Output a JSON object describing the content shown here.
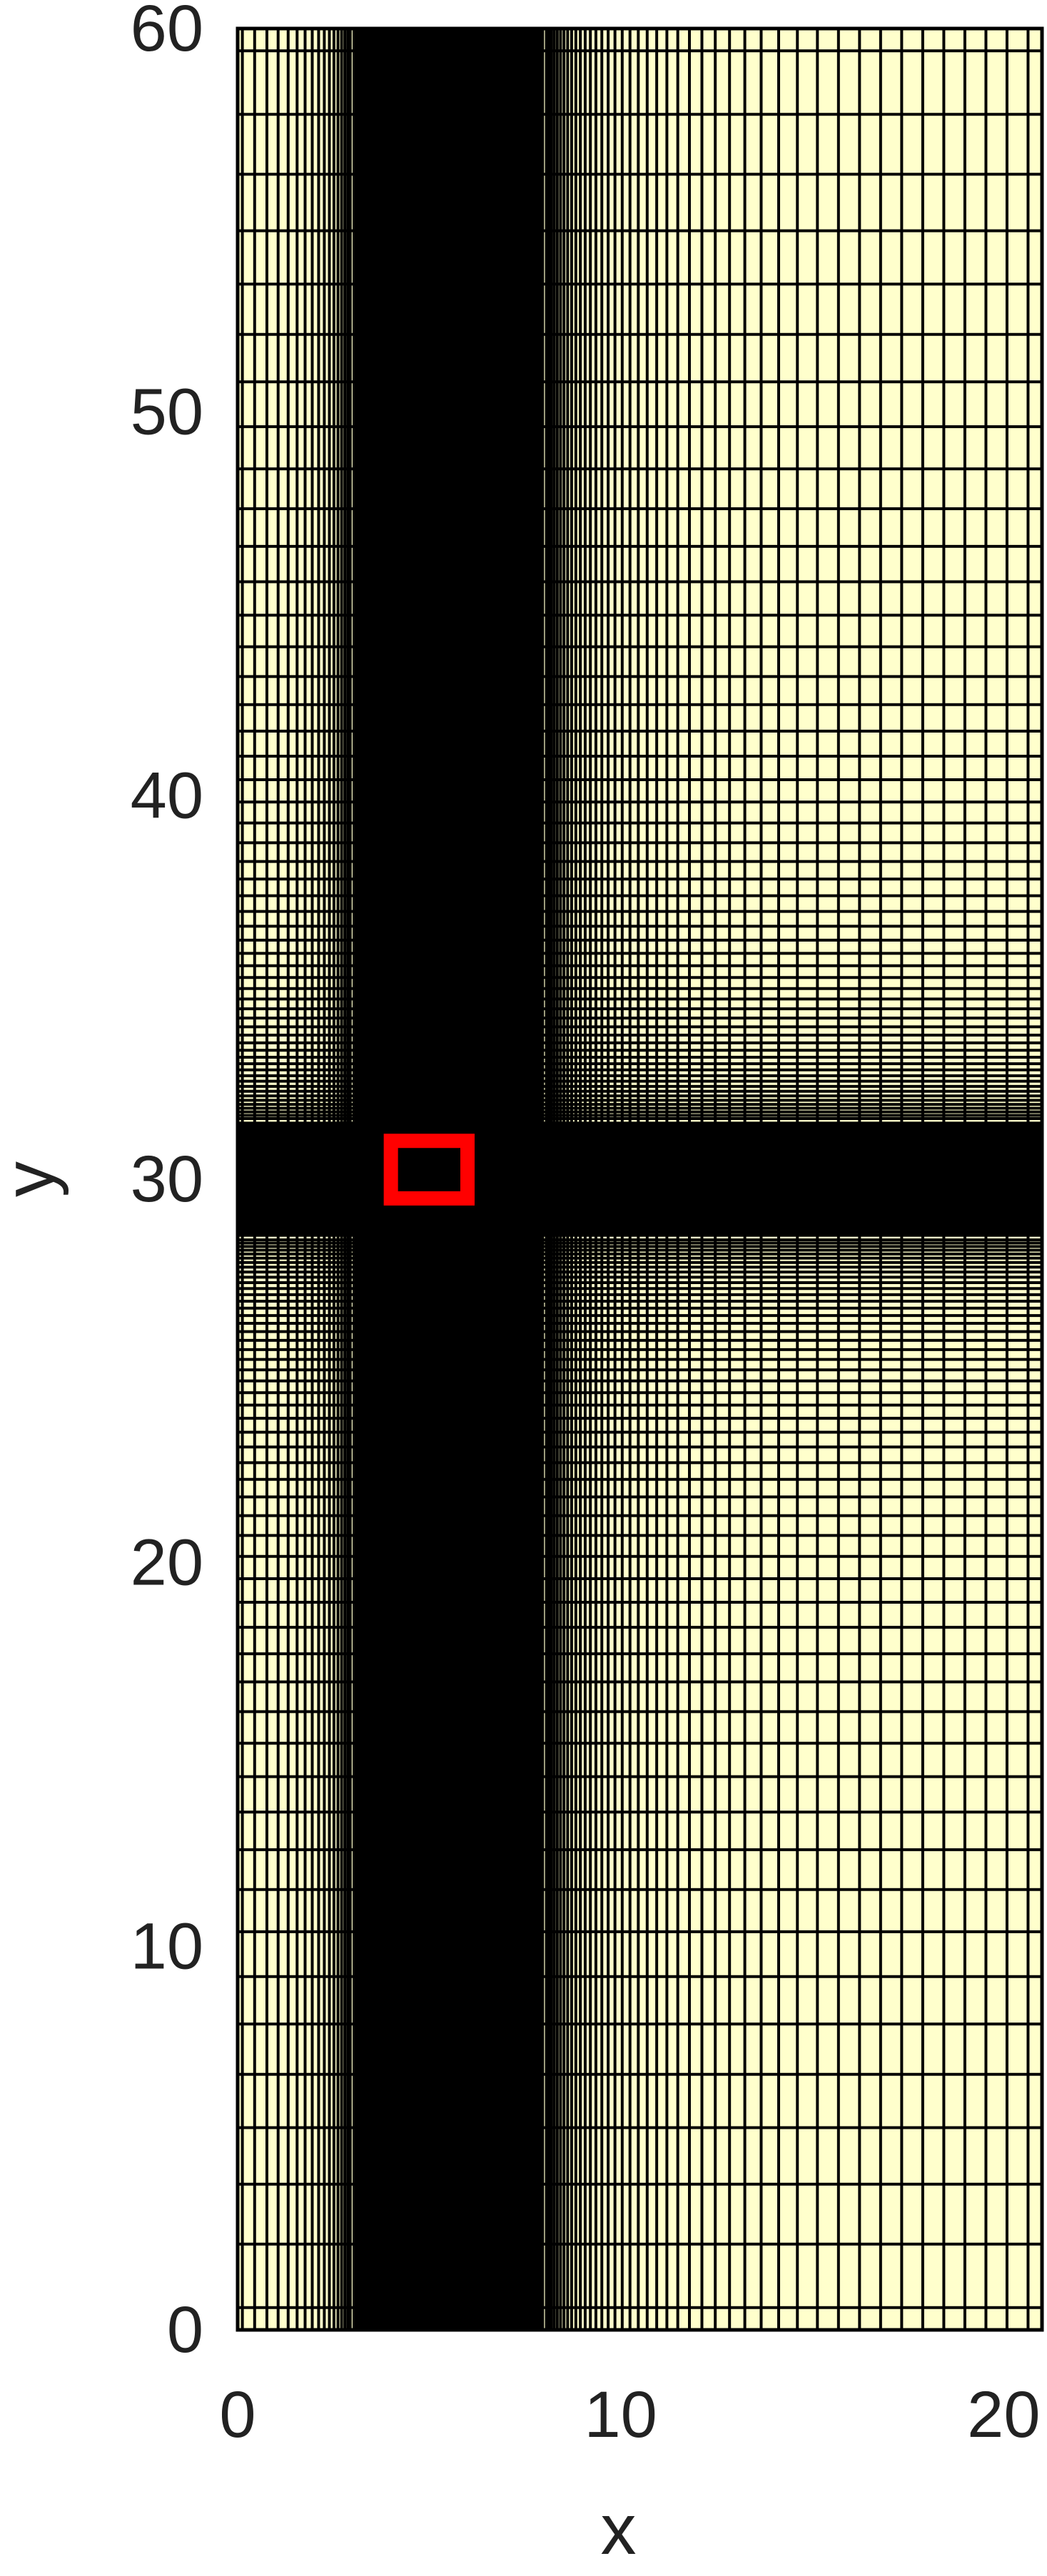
{
  "chart_data": {
    "type": "grid-mesh",
    "xlabel": "x",
    "ylabel": "y",
    "xlim": [
      0,
      21
    ],
    "ylim": [
      0,
      60
    ],
    "x_ticks": [
      0,
      10,
      20
    ],
    "y_ticks": [
      0,
      10,
      20,
      30,
      40,
      50,
      60
    ],
    "x_tick_labels": [
      "0",
      "10",
      "20"
    ],
    "y_tick_labels": [
      "0",
      "10",
      "20",
      "30",
      "40",
      "50",
      "60"
    ],
    "background_color": "#FFFFCC",
    "line_color": "#000000",
    "refined_band_x": [
      3,
      8
    ],
    "refined_band_y": [
      28.5,
      31.5
    ],
    "highlight_box": {
      "x": [
        4,
        6
      ],
      "y": [
        29.5,
        31
      ],
      "color": "#FF0000"
    },
    "grid": true
  }
}
